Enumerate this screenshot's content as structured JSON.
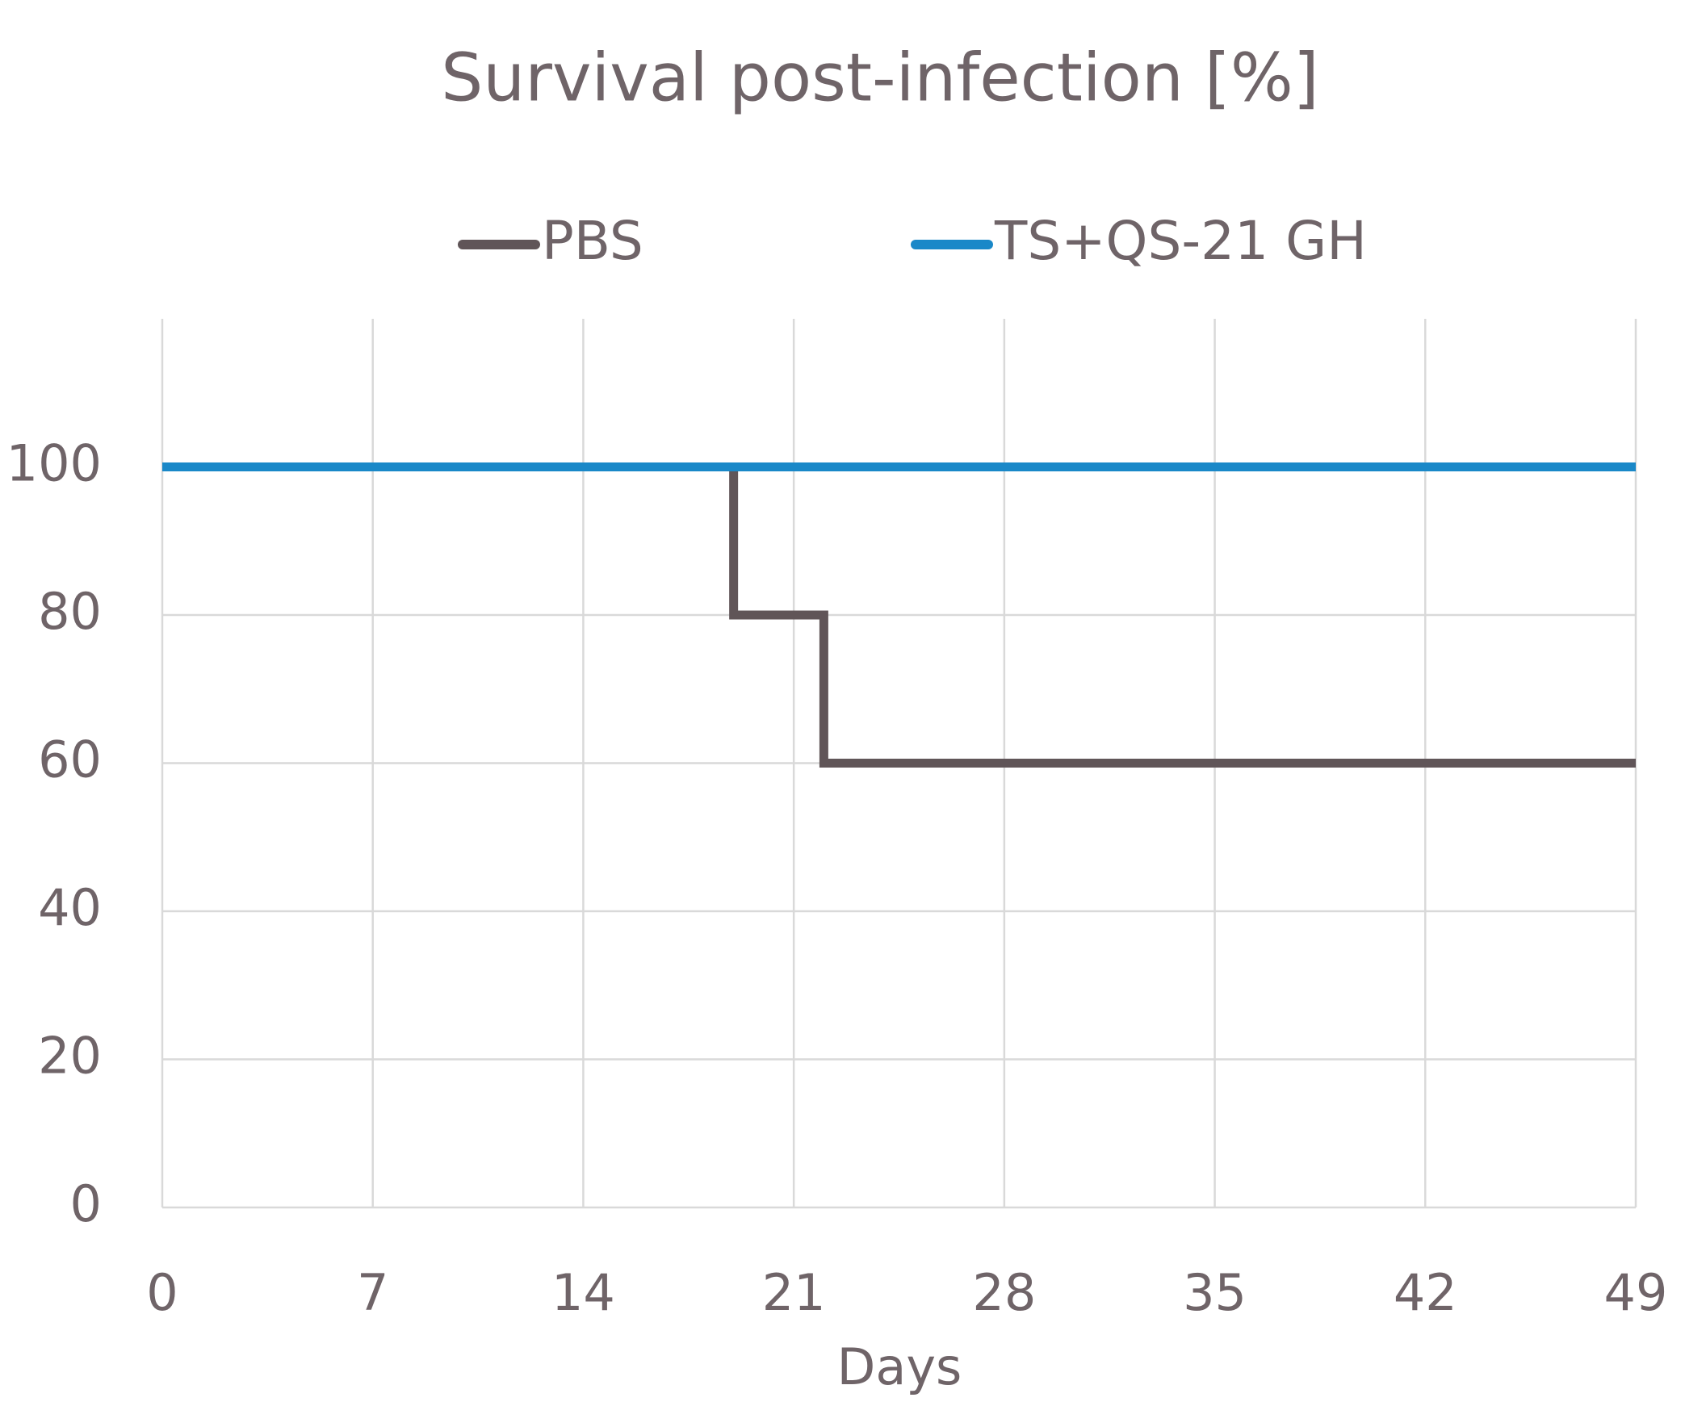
{
  "chart_data": {
    "type": "line",
    "title": "Survival post-infection [%]",
    "x_label": "Days",
    "series": [
      {
        "name": "PBS",
        "color": "#605558",
        "x": [
          0,
          19,
          19,
          22,
          22,
          49
        ],
        "values": [
          100,
          100,
          80,
          80,
          60,
          60
        ]
      },
      {
        "name": "TS+QS-21 GH",
        "color": "#1a88c8",
        "x": [
          0,
          49
        ],
        "values": [
          100,
          100
        ]
      }
    ],
    "xlim": [
      0,
      49
    ],
    "xticks": [
      0,
      7,
      14,
      21,
      28,
      35,
      42,
      49
    ],
    "ylim": [
      0,
      120
    ],
    "yticks": [
      0,
      20,
      40,
      60,
      80,
      100
    ],
    "grid": true,
    "legend": "top"
  }
}
